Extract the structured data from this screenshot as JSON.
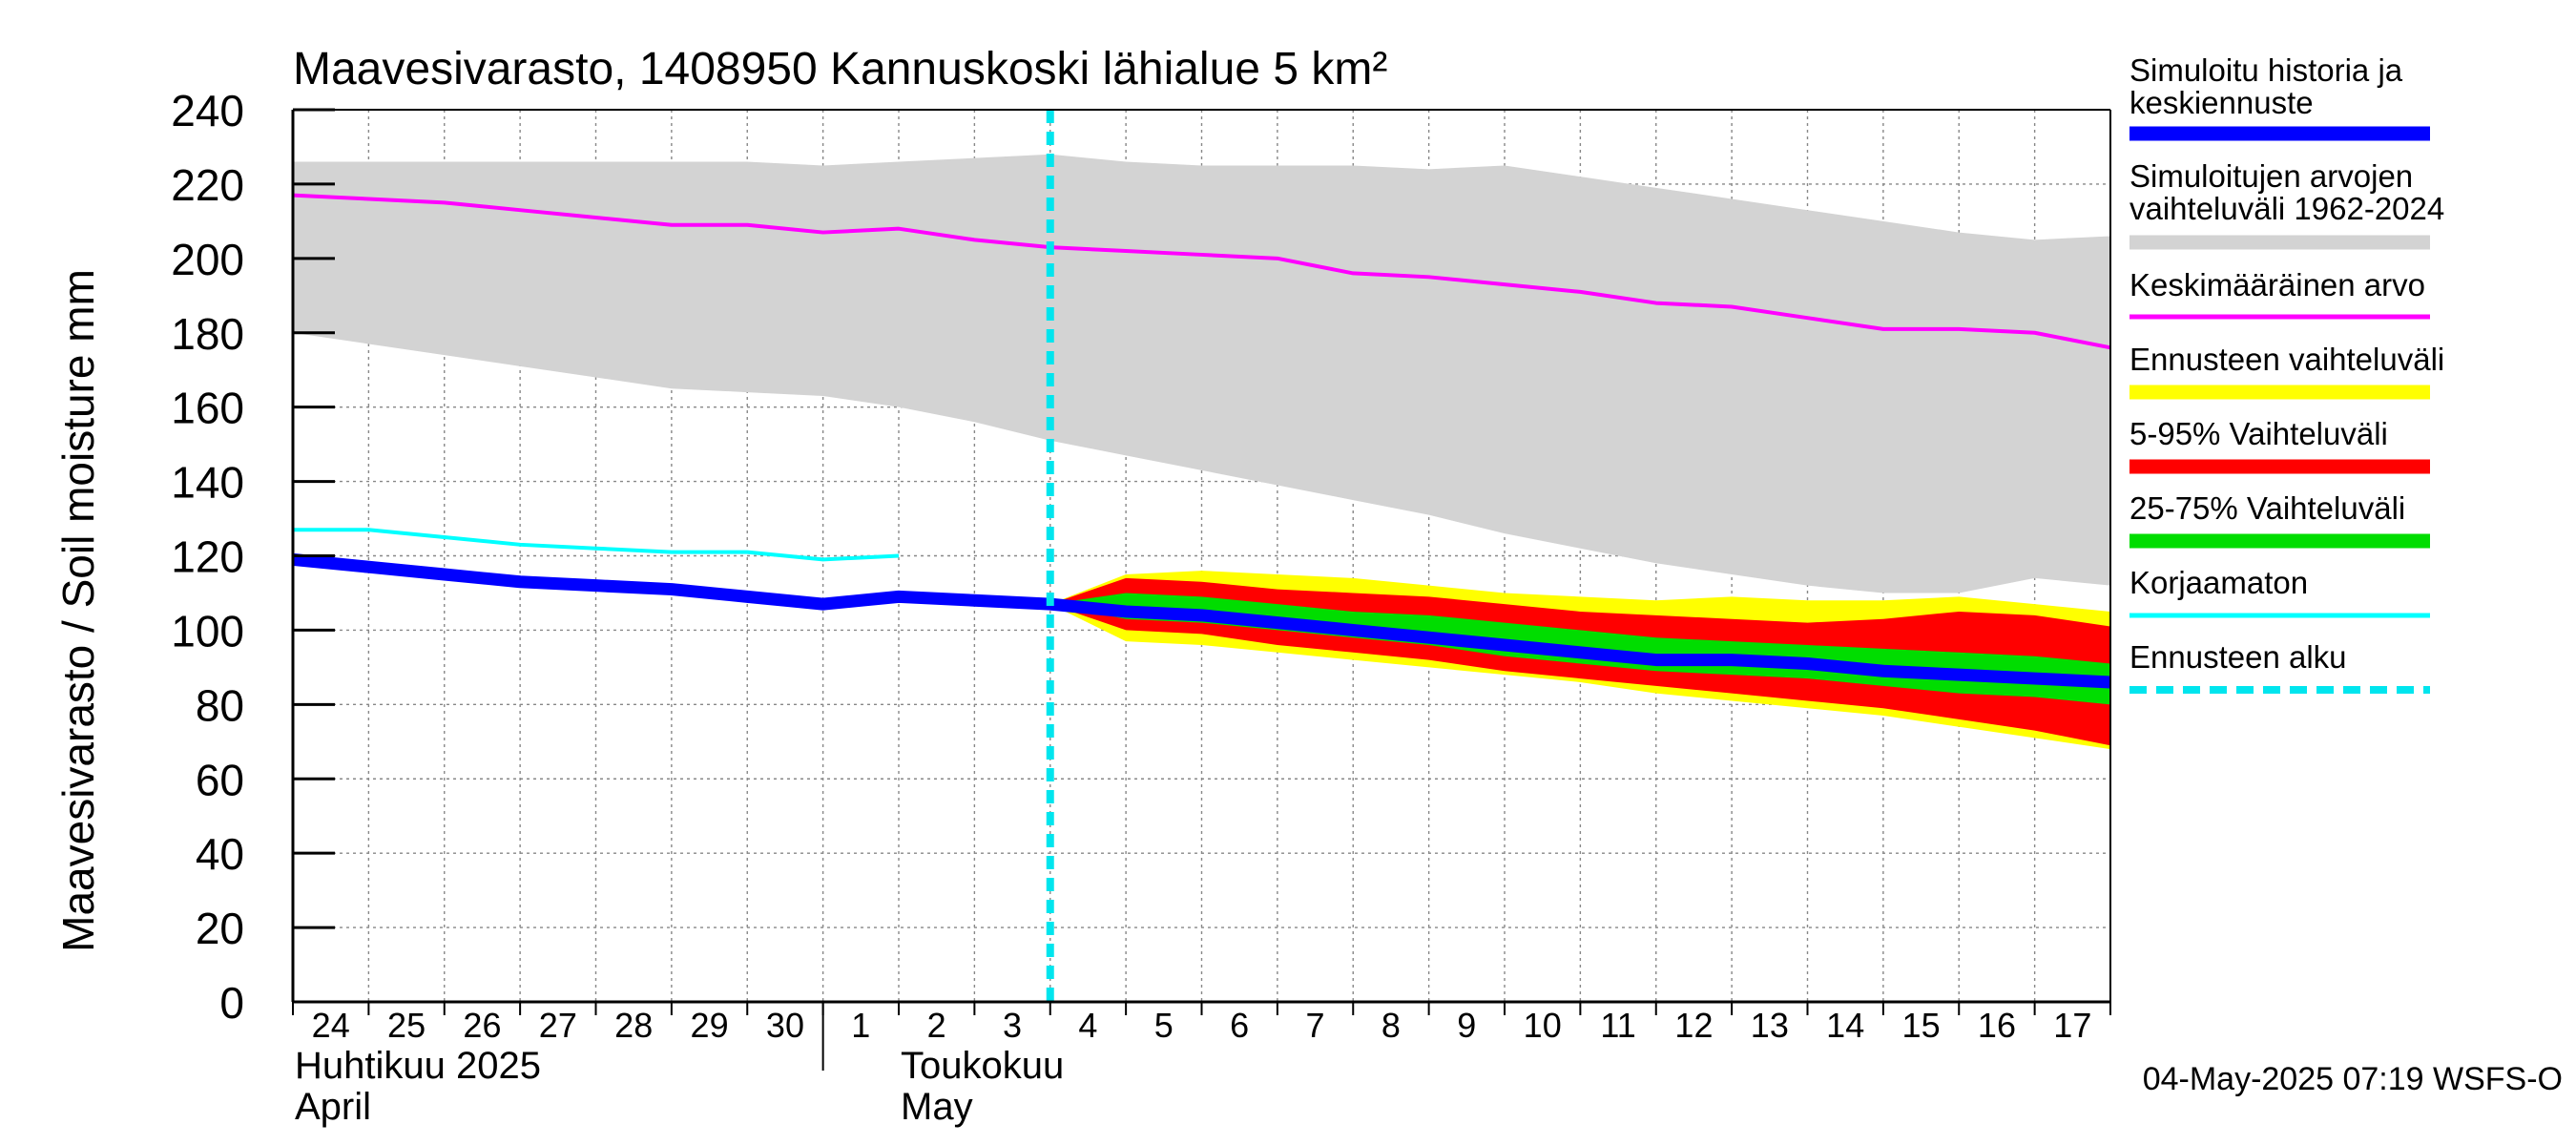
{
  "chart_data": {
    "type": "area",
    "title": "Maavesivarasto, 1408950 Kannuskoski lähialue 5 km²",
    "ylabel": "Maavesivarasto / Soil moisture   mm",
    "ylim": [
      0,
      240
    ],
    "yticks": [
      "0",
      "20",
      "40",
      "60",
      "80",
      "100",
      "120",
      "140",
      "160",
      "180",
      "200",
      "220",
      "240"
    ],
    "xlim": [
      0,
      24
    ],
    "grid": true,
    "legend_position": "right",
    "x_day_labels": [
      "24",
      "25",
      "26",
      "27",
      "28",
      "29",
      "30",
      "1",
      "2",
      "3",
      "4",
      "5",
      "6",
      "7",
      "8",
      "9",
      "10",
      "11",
      "12",
      "13",
      "14",
      "15",
      "16",
      "17"
    ],
    "month_labels": [
      {
        "fi": "Huhtikuu  2025",
        "en": "April"
      },
      {
        "fi": "Toukokuu",
        "en": "May"
      }
    ],
    "forecast_start_x": 10,
    "footer": "04-May-2025 07:19 WSFS-O",
    "series": [
      {
        "name": "Simuloitujen arvojen vaihteluväli 1962-2024",
        "color": "#d3d3d3",
        "x": [
          0,
          1,
          2,
          3,
          4,
          5,
          6,
          7,
          8,
          9,
          10,
          11,
          12,
          13,
          14,
          15,
          16,
          17,
          18,
          19,
          20,
          21,
          22,
          23,
          24
        ],
        "upper": [
          226,
          226,
          226,
          226,
          226,
          226,
          226,
          225,
          226,
          227,
          228,
          226,
          225,
          225,
          225,
          224,
          225,
          222,
          219,
          216,
          213,
          210,
          207,
          205,
          206
        ],
        "lower": [
          180,
          177,
          174,
          171,
          168,
          165,
          164,
          163,
          160,
          156,
          151,
          147,
          143,
          139,
          135,
          131,
          126,
          122,
          118,
          115,
          112,
          110,
          110,
          114,
          112
        ]
      },
      {
        "name": "Ennusteen vaihteluväli",
        "color": "#ffff00",
        "x": [
          10,
          11,
          12,
          13,
          14,
          15,
          16,
          17,
          18,
          19,
          20,
          21,
          22,
          23,
          24
        ],
        "upper": [
          107,
          115,
          116,
          115,
          114,
          112,
          110,
          109,
          108,
          109,
          108,
          108,
          109,
          107,
          105
        ],
        "lower": [
          107,
          97,
          96,
          94,
          92,
          90,
          88,
          86,
          83,
          81,
          79,
          77,
          74,
          71,
          68
        ]
      },
      {
        "name": "5-95% Vaihteluväli",
        "color": "#ff0000",
        "x": [
          10,
          11,
          12,
          13,
          14,
          15,
          16,
          17,
          18,
          19,
          20,
          21,
          22,
          23,
          24
        ],
        "upper": [
          107,
          114,
          113,
          111,
          110,
          109,
          107,
          105,
          104,
          103,
          102,
          103,
          105,
          104,
          101
        ],
        "lower": [
          107,
          100,
          99,
          96,
          94,
          92,
          89,
          87,
          85,
          83,
          81,
          79,
          76,
          73,
          69
        ]
      },
      {
        "name": "25-75% Vaihteluväli",
        "color": "#00dd00",
        "x": [
          10,
          11,
          12,
          13,
          14,
          15,
          16,
          17,
          18,
          19,
          20,
          21,
          22,
          23,
          24
        ],
        "upper": [
          107,
          110,
          109,
          107,
          105,
          104,
          102,
          100,
          98,
          97,
          96,
          95,
          94,
          93,
          91
        ],
        "lower": [
          107,
          103,
          102,
          100,
          98,
          96,
          93,
          91,
          89,
          88,
          87,
          85,
          83,
          82,
          80
        ]
      },
      {
        "name": "Simuloitu historia ja keskiennuste",
        "color": "#0000ff",
        "x": [
          0,
          1,
          2,
          3,
          4,
          5,
          6,
          7,
          8,
          9,
          10,
          11,
          12,
          13,
          14,
          15,
          16,
          17,
          18,
          19,
          20,
          21,
          22,
          23,
          24
        ],
        "y": [
          119,
          117,
          115,
          113,
          112,
          111,
          109,
          107,
          109,
          108,
          107,
          105,
          104,
          102,
          100,
          98,
          96,
          94,
          92,
          92,
          91,
          89,
          88,
          87,
          86
        ]
      },
      {
        "name": "Keskimääräinen arvo",
        "color": "#ff00ff",
        "x": [
          0,
          1,
          2,
          3,
          4,
          5,
          6,
          7,
          8,
          9,
          10,
          11,
          12,
          13,
          14,
          15,
          16,
          17,
          18,
          19,
          20,
          21,
          22,
          23,
          24
        ],
        "y": [
          217,
          216,
          215,
          213,
          211,
          209,
          209,
          207,
          208,
          205,
          203,
          202,
          201,
          200,
          196,
          195,
          193,
          191,
          188,
          187,
          184,
          181,
          181,
          180,
          176
        ]
      },
      {
        "name": "Korjaamaton",
        "color": "#00ffff",
        "x": [
          0,
          1,
          2,
          3,
          4,
          5,
          6,
          7,
          8
        ],
        "y": [
          127,
          127,
          125,
          123,
          122,
          121,
          121,
          119,
          120
        ]
      },
      {
        "name": "Ennusteen alku",
        "color": "#00e5ee",
        "type": "vline"
      }
    ]
  }
}
